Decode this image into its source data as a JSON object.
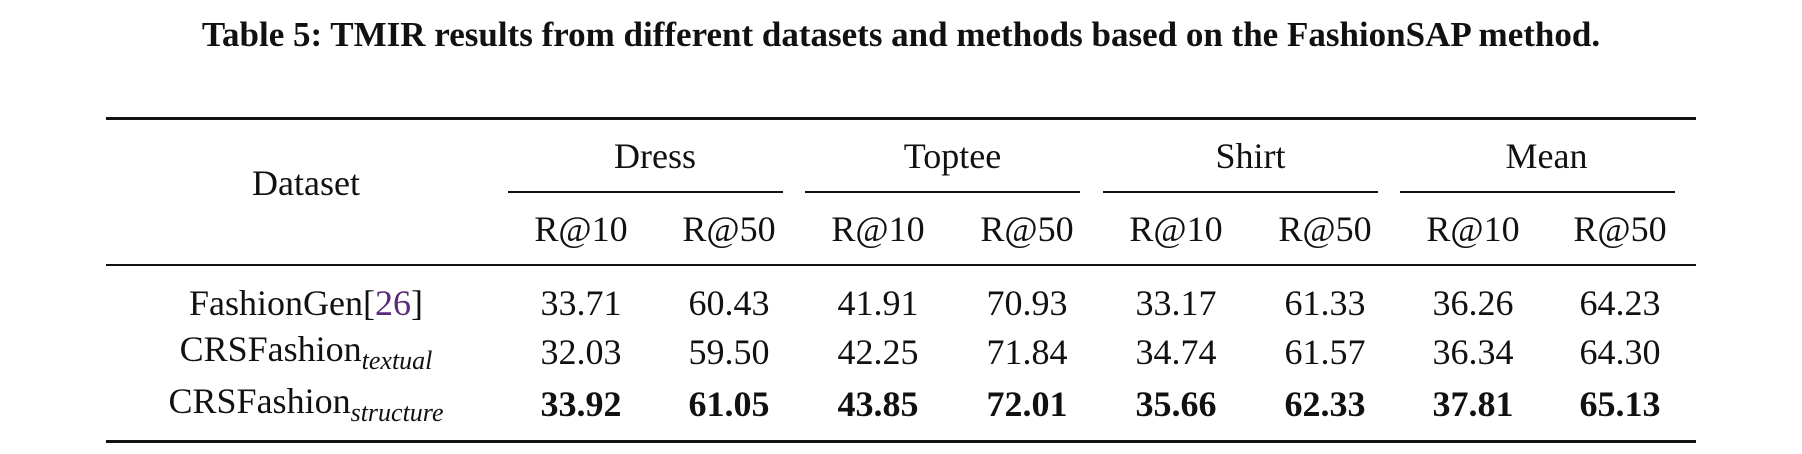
{
  "caption": "Table 5: TMIR results from different datasets and methods based on the FashionSAP method.",
  "table": {
    "row_header": "Dataset",
    "groups": [
      "Dress",
      "Toptee",
      "Shirt",
      "Mean"
    ],
    "metrics": [
      "R@10",
      "R@50",
      "R@10",
      "R@50",
      "R@10",
      "R@50",
      "R@10",
      "R@50"
    ],
    "rows": [
      {
        "name": "FashionGen",
        "cite": "26",
        "values": [
          "33.71",
          "60.43",
          "41.91",
          "70.93",
          "33.17",
          "61.33",
          "36.26",
          "64.23"
        ]
      },
      {
        "name": "CRSFashion",
        "sub": "textual",
        "values": [
          "32.03",
          "59.50",
          "42.25",
          "71.84",
          "34.74",
          "61.57",
          "36.34",
          "64.30"
        ]
      },
      {
        "name": "CRSFashion",
        "sub": "structure",
        "values": [
          "33.92",
          "61.05",
          "43.85",
          "72.01",
          "35.66",
          "62.33",
          "37.81",
          "65.13"
        ]
      }
    ]
  }
}
